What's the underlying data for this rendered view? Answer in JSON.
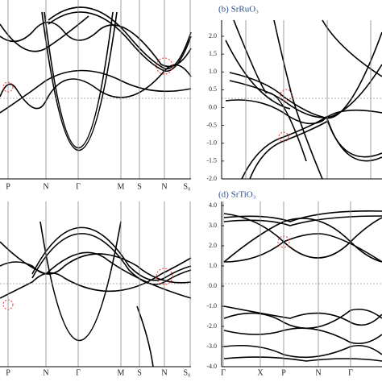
{
  "panels": [
    {
      "xlabels": [
        "P",
        "N",
        "Γ",
        "M",
        "S",
        "N",
        "S₀"
      ]
    },
    {
      "title": "(b) SrRuO₃",
      "yticks": [
        "2.0",
        "1.5",
        "1.0",
        "0.5",
        "0.0",
        "-0.5",
        "-1.0",
        "-1.5",
        "-2.0"
      ]
    },
    {
      "xlabels": [
        "P",
        "N",
        "Γ",
        "M",
        "S",
        "N",
        "S₀"
      ]
    },
    {
      "title": "(d) SrTiO₃",
      "yticks": [
        "4.0",
        "3.0",
        "2.0",
        "1.0",
        "0.0",
        "-1.0",
        "-2.0",
        "-3.0",
        "-4.0"
      ],
      "xlabels": [
        "Γ",
        "X",
        "P",
        "N",
        "Γ"
      ]
    }
  ]
}
